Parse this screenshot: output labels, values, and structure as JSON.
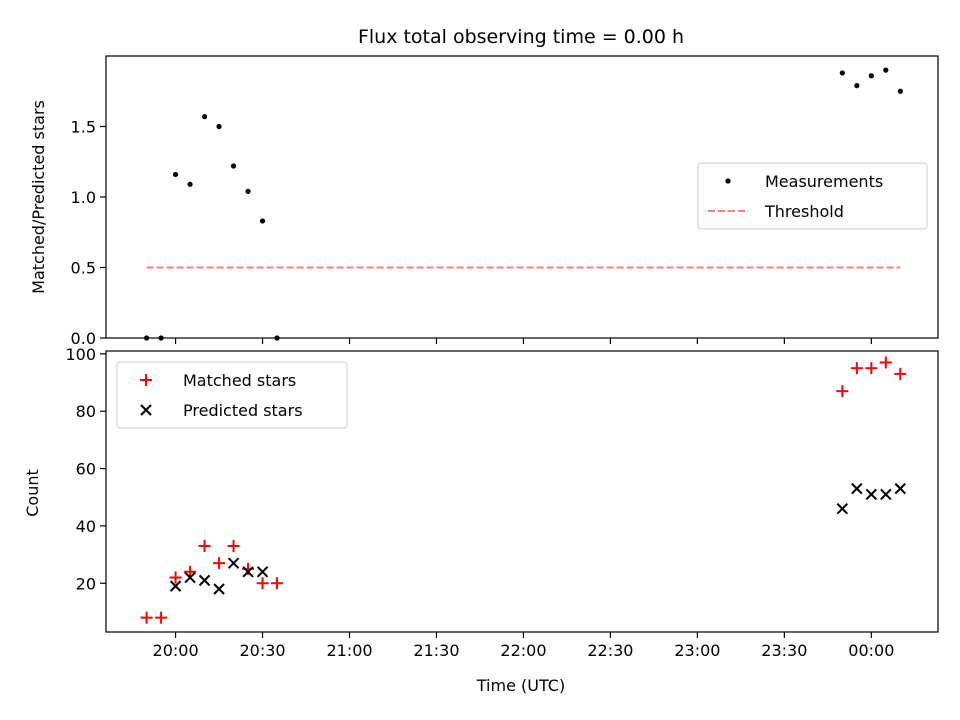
{
  "chart_data": {
    "title": "Flux total observing time = 0.00 h",
    "xlabel": "Time (UTC)",
    "x_ticks": [
      "20:00",
      "20:30",
      "21:00",
      "21:30",
      "22:00",
      "22:30",
      "23:00",
      "23:30",
      "00:00"
    ],
    "x_tick_minutes": [
      1200,
      1230,
      1260,
      1290,
      1320,
      1350,
      1380,
      1410,
      1440
    ],
    "xlim_minutes": [
      1176,
      1463
    ],
    "panels": [
      {
        "id": "ratio",
        "type": "scatter",
        "ylabel": "Matched/Predicted stars",
        "ylim": [
          0,
          2.0
        ],
        "y_ticks": [
          0.0,
          0.5,
          1.0,
          1.5
        ],
        "legend_position": "center-right",
        "series": [
          {
            "name": "Measurements",
            "marker": "dot",
            "color": "#000000",
            "x_minutes": [
              1190,
              1195,
              1200,
              1205,
              1210,
              1215,
              1220,
              1225,
              1230,
              1235,
              1430,
              1435,
              1440,
              1445,
              1450
            ],
            "y": [
              0.0,
              0.0,
              1.16,
              1.09,
              1.57,
              1.5,
              1.22,
              1.04,
              0.83,
              0.0,
              1.88,
              1.79,
              1.86,
              1.9,
              1.75
            ]
          },
          {
            "name": "Threshold",
            "style": "dashed-line",
            "color": "#ff7f7f",
            "x_minutes": [
              1190,
              1450
            ],
            "y": [
              0.5,
              0.5
            ]
          }
        ]
      },
      {
        "id": "count",
        "type": "scatter",
        "ylabel": "Count",
        "ylim": [
          3,
          101
        ],
        "y_ticks": [
          20,
          40,
          60,
          80,
          100
        ],
        "legend_position": "upper-left",
        "series": [
          {
            "name": "Matched stars",
            "marker": "plus",
            "color": "#ff0000",
            "x_minutes": [
              1190,
              1195,
              1200,
              1205,
              1210,
              1215,
              1220,
              1225,
              1230,
              1235,
              1430,
              1435,
              1440,
              1445,
              1450
            ],
            "y": [
              8,
              8,
              22,
              24,
              33,
              27,
              33,
              25,
              20,
              20,
              87,
              95,
              95,
              97,
              93
            ]
          },
          {
            "name": "Predicted stars",
            "marker": "x",
            "color": "#000000",
            "x_minutes": [
              1200,
              1205,
              1210,
              1215,
              1220,
              1225,
              1230,
              1430,
              1435,
              1440,
              1445,
              1450
            ],
            "y": [
              19,
              22,
              21,
              18,
              27,
              24,
              24,
              46,
              53,
              51,
              51,
              53
            ]
          }
        ]
      }
    ]
  }
}
